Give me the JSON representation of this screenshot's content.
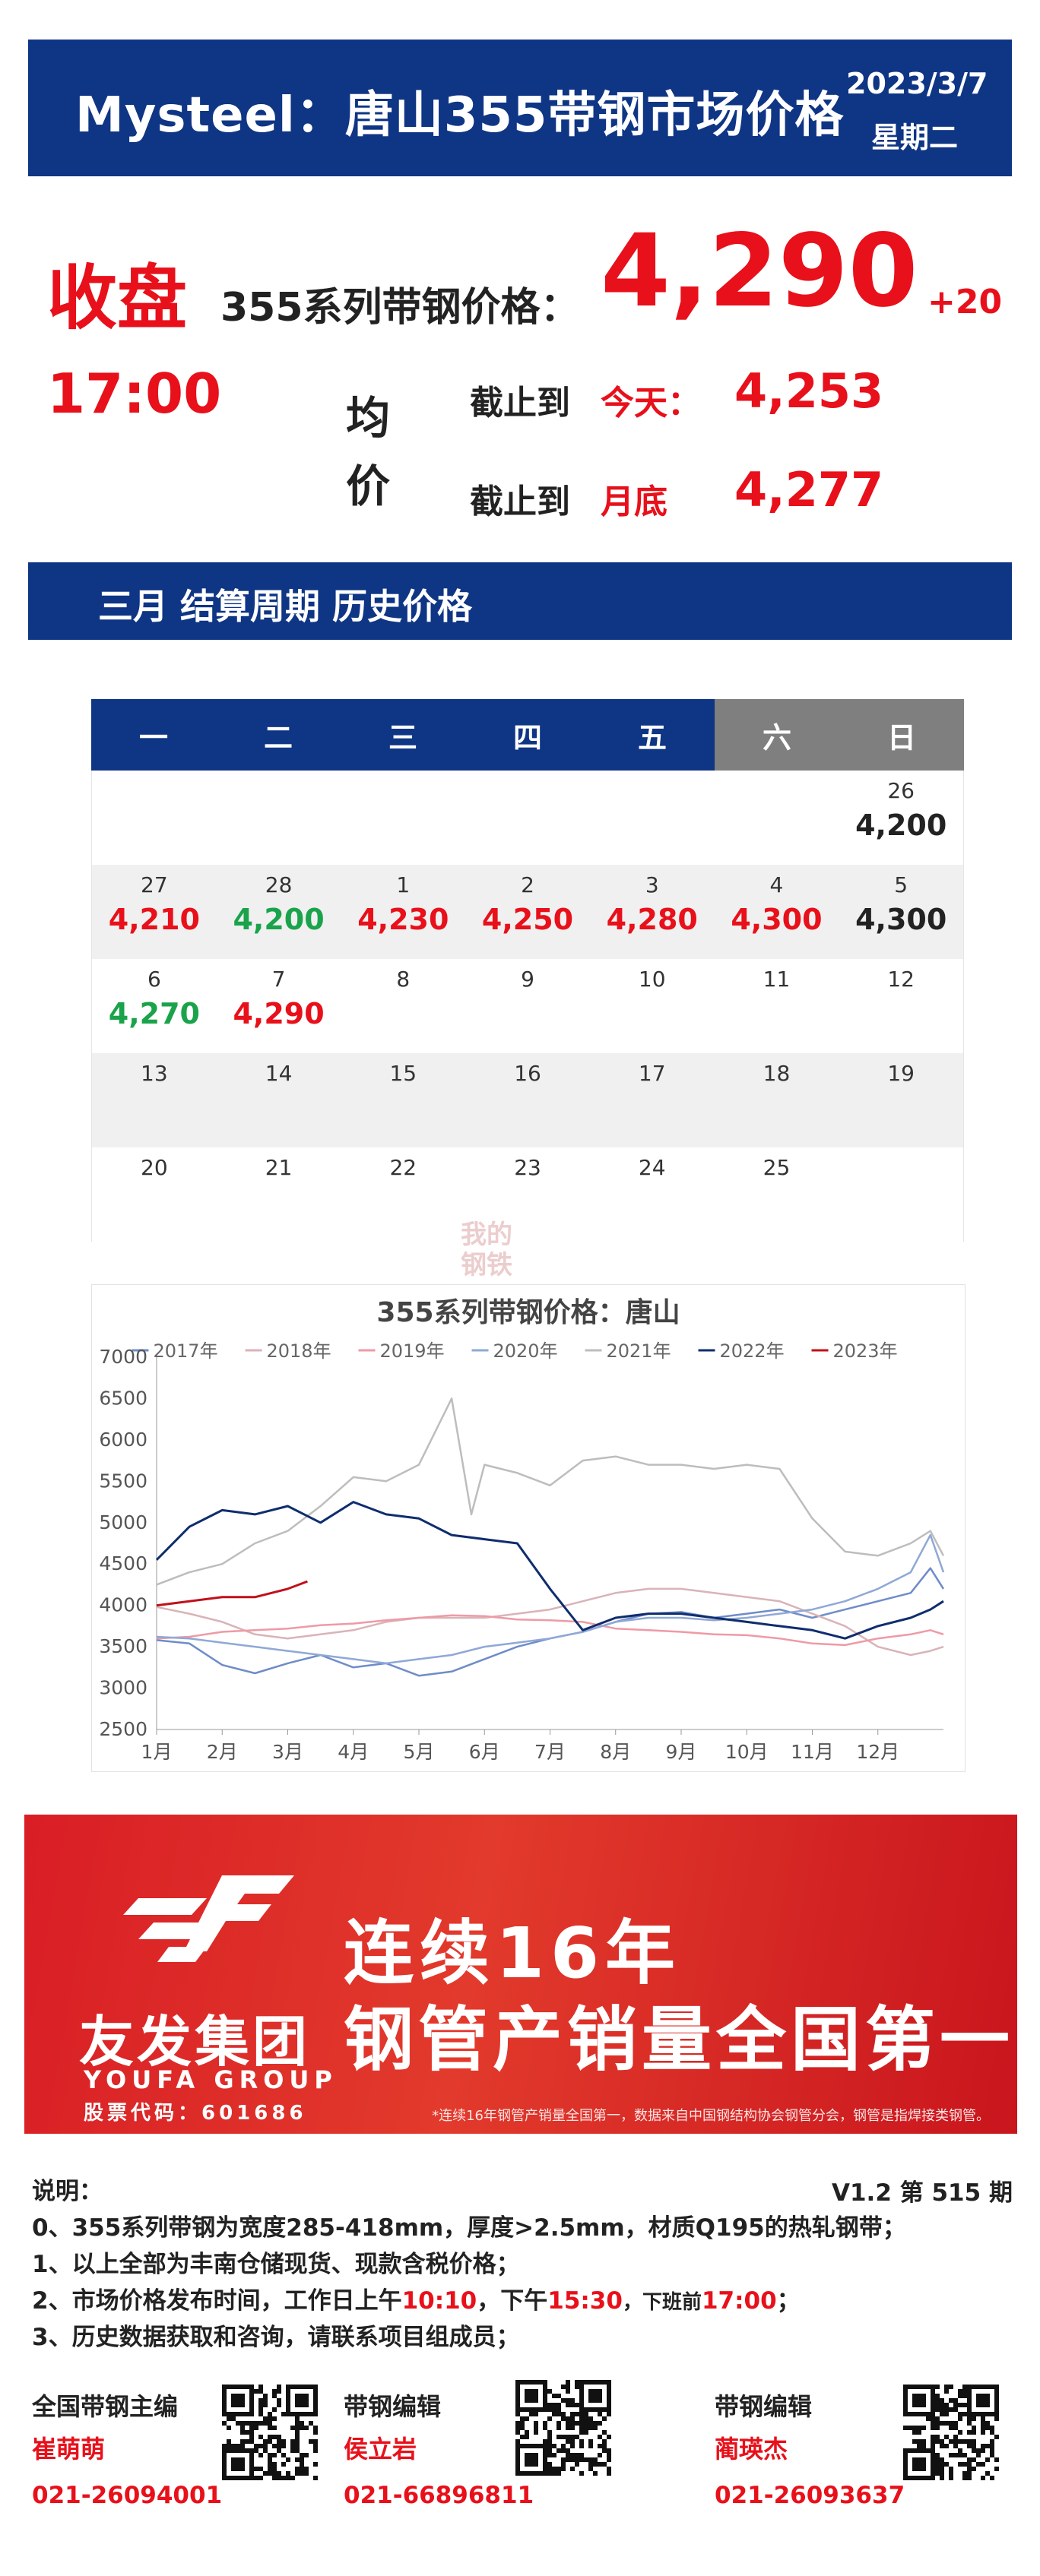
{
  "header": {
    "title": "Mysteel：唐山355带钢市场价格",
    "date": "2023/3/7",
    "weekday": "星期二"
  },
  "summary": {
    "close_label": "收盘",
    "close_time": "17:00",
    "price_label": "355系列带钢价格：",
    "price": "4,290",
    "change": "+20",
    "avg_label": "均价",
    "row1_label": "截止到",
    "row1_key": "今天：",
    "row1_value": "4,253",
    "row2_label": "截止到",
    "row2_key": "月底",
    "row2_value": "4,277"
  },
  "section": {
    "title": "三月 结算周期 历史价格"
  },
  "calendar": {
    "headers": [
      "一",
      "二",
      "三",
      "四",
      "五",
      "六",
      "日"
    ],
    "weeks": [
      [
        {
          "d": "",
          "p": "",
          "t": ""
        },
        {
          "d": "",
          "p": "",
          "t": ""
        },
        {
          "d": "",
          "p": "",
          "t": ""
        },
        {
          "d": "",
          "p": "",
          "t": ""
        },
        {
          "d": "",
          "p": "",
          "t": ""
        },
        {
          "d": "",
          "p": "",
          "t": ""
        },
        {
          "d": "26",
          "p": "4,200",
          "t": "flat"
        }
      ],
      [
        {
          "d": "27",
          "p": "4,210",
          "t": "up"
        },
        {
          "d": "28",
          "p": "4,200",
          "t": "down"
        },
        {
          "d": "1",
          "p": "4,230",
          "t": "up"
        },
        {
          "d": "2",
          "p": "4,250",
          "t": "up"
        },
        {
          "d": "3",
          "p": "4,280",
          "t": "up"
        },
        {
          "d": "4",
          "p": "4,300",
          "t": "up"
        },
        {
          "d": "5",
          "p": "4,300",
          "t": "flat"
        }
      ],
      [
        {
          "d": "6",
          "p": "4,270",
          "t": "down"
        },
        {
          "d": "7",
          "p": "4,290",
          "t": "up"
        },
        {
          "d": "8",
          "p": "",
          "t": ""
        },
        {
          "d": "9",
          "p": "",
          "t": ""
        },
        {
          "d": "10",
          "p": "",
          "t": ""
        },
        {
          "d": "11",
          "p": "",
          "t": ""
        },
        {
          "d": "12",
          "p": "",
          "t": ""
        }
      ],
      [
        {
          "d": "13",
          "p": "",
          "t": ""
        },
        {
          "d": "14",
          "p": "",
          "t": ""
        },
        {
          "d": "15",
          "p": "",
          "t": ""
        },
        {
          "d": "16",
          "p": "",
          "t": ""
        },
        {
          "d": "17",
          "p": "",
          "t": ""
        },
        {
          "d": "18",
          "p": "",
          "t": ""
        },
        {
          "d": "19",
          "p": "",
          "t": ""
        }
      ],
      [
        {
          "d": "20",
          "p": "",
          "t": ""
        },
        {
          "d": "21",
          "p": "",
          "t": ""
        },
        {
          "d": "22",
          "p": "",
          "t": ""
        },
        {
          "d": "23",
          "p": "",
          "t": ""
        },
        {
          "d": "24",
          "p": "",
          "t": ""
        },
        {
          "d": "25",
          "p": "",
          "t": ""
        },
        {
          "d": "",
          "p": "",
          "t": ""
        }
      ]
    ]
  },
  "watermark": {
    "text": "我的钢铁"
  },
  "chart_data": {
    "type": "line",
    "title": "355系列带钢价格：唐山",
    "xlabel": "",
    "ylabel": "",
    "x_ticks": [
      "1月",
      "2月",
      "3月",
      "4月",
      "5月",
      "6月",
      "7月",
      "8月",
      "9月",
      "10月",
      "11月",
      "12月"
    ],
    "ylim": [
      2500,
      7000
    ],
    "y_ticks": [
      2500,
      3000,
      3500,
      4000,
      4500,
      5000,
      5500,
      6000,
      6500,
      7000
    ],
    "grid": false,
    "legend": "top",
    "series": [
      {
        "name": "2017年",
        "color": "#6f8cc9",
        "x": [
          1,
          1.5,
          2,
          2.5,
          3,
          3.5,
          4,
          4.5,
          5,
          5.5,
          6,
          6.5,
          7,
          7.5,
          8,
          8.5,
          9,
          9.5,
          10,
          10.5,
          11,
          11.5,
          12,
          12.5,
          12.8,
          13
        ],
        "values": [
          3580,
          3540,
          3280,
          3180,
          3300,
          3400,
          3250,
          3300,
          3150,
          3200,
          3350,
          3500,
          3600,
          3680,
          3800,
          3900,
          3920,
          3850,
          3900,
          3950,
          3850,
          3950,
          4050,
          4150,
          4450,
          4200
        ]
      },
      {
        "name": "2018年",
        "color": "#d9b3b8",
        "x": [
          1,
          1.5,
          2,
          2.5,
          3,
          3.5,
          4,
          4.5,
          5,
          5.5,
          6,
          6.5,
          7,
          7.5,
          8,
          8.5,
          9,
          9.5,
          10,
          10.5,
          11,
          11.5,
          12,
          12.5,
          12.8,
          13
        ],
        "values": [
          3980,
          3900,
          3800,
          3650,
          3600,
          3650,
          3700,
          3800,
          3850,
          3850,
          3850,
          3900,
          3950,
          4050,
          4150,
          4200,
          4200,
          4150,
          4100,
          4050,
          3900,
          3750,
          3500,
          3400,
          3450,
          3500
        ]
      },
      {
        "name": "2019年",
        "color": "#ee9aa6",
        "x": [
          1,
          1.5,
          2,
          2.5,
          3,
          3.5,
          4,
          4.5,
          5,
          5.5,
          6,
          6.5,
          7,
          7.5,
          8,
          8.5,
          9,
          9.5,
          10,
          10.5,
          11,
          11.5,
          12,
          12.5,
          12.8,
          13
        ],
        "values": [
          3600,
          3620,
          3680,
          3700,
          3720,
          3760,
          3780,
          3820,
          3850,
          3880,
          3870,
          3830,
          3820,
          3800,
          3720,
          3700,
          3680,
          3650,
          3640,
          3600,
          3540,
          3520,
          3600,
          3650,
          3700,
          3650
        ]
      },
      {
        "name": "2020年",
        "color": "#8fa8d6",
        "x": [
          1,
          1.5,
          2,
          2.5,
          3,
          3.5,
          4,
          4.5,
          5,
          5.5,
          6,
          6.5,
          7,
          7.5,
          8,
          8.5,
          9,
          9.5,
          10,
          10.5,
          11,
          11.5,
          12,
          12.5,
          12.8,
          13
        ],
        "values": [
          3620,
          3600,
          3550,
          3500,
          3450,
          3400,
          3350,
          3300,
          3350,
          3400,
          3500,
          3550,
          3600,
          3680,
          3800,
          3850,
          3850,
          3820,
          3850,
          3900,
          3950,
          4050,
          4200,
          4400,
          4850,
          4400
        ]
      },
      {
        "name": "2021年",
        "color": "#bdbdbd",
        "x": [
          1,
          1.5,
          2,
          2.5,
          3,
          3.5,
          4,
          4.5,
          5,
          5.5,
          5.8,
          6,
          6.5,
          7,
          7.5,
          8,
          8.5,
          9,
          9.5,
          10,
          10.5,
          11,
          11.5,
          12,
          12.5,
          12.8,
          13
        ],
        "values": [
          4250,
          4400,
          4500,
          4750,
          4900,
          5200,
          5550,
          5500,
          5700,
          6500,
          5100,
          5700,
          5600,
          5450,
          5750,
          5800,
          5700,
          5700,
          5650,
          5700,
          5650,
          5050,
          4650,
          4600,
          4750,
          4900,
          4600
        ]
      },
      {
        "name": "2022年",
        "color": "#0f2d6e",
        "x": [
          1,
          1.5,
          2,
          2.5,
          3,
          3.5,
          4,
          4.5,
          5,
          5.5,
          6,
          6.5,
          7,
          7.5,
          8,
          8.5,
          9,
          9.5,
          10,
          10.5,
          11,
          11.5,
          12,
          12.5,
          12.8,
          13
        ],
        "values": [
          4550,
          4950,
          5150,
          5100,
          5200,
          5000,
          5250,
          5100,
          5050,
          4850,
          4800,
          4750,
          4200,
          3700,
          3850,
          3900,
          3900,
          3850,
          3800,
          3750,
          3700,
          3600,
          3750,
          3850,
          3950,
          4050
        ]
      },
      {
        "name": "2023年",
        "color": "#c0101a",
        "x": [
          1,
          1.5,
          2,
          2.5,
          3,
          3.3
        ],
        "values": [
          4000,
          4050,
          4100,
          4100,
          4200,
          4290
        ]
      }
    ]
  },
  "ad": {
    "brand": "友发集团",
    "brand_en": "YOUFA GROUP",
    "stock": "股票代码：601686",
    "slogan1": "连续16年",
    "slogan2": "钢管产销量全国第一",
    "note": "*连续16年钢管产销量全国第一，数据来自中国钢结构协会钢管分会，钢管是指焊接类钢管。"
  },
  "notes": {
    "heading": "说明：",
    "version": "V1.2   第 515 期",
    "line0": "0、355系列带钢为宽度285-418mm，厚度>2.5mm，材质Q195的热轧钢带；",
    "line1": "1、以上全部为丰南仓储现货、现款含税价格；",
    "line2_a": "2、市场价格发布时间，工作日上午",
    "line2_t1": "10:10",
    "line2_b": "，下午",
    "line2_t2": "15:30",
    "line2_c": "，下班前",
    "line2_t3": "17:00",
    "line2_d": "；",
    "line3": "3、历史数据获取和咨询，请联系项目组成员；"
  },
  "contacts": [
    {
      "role": "全国带钢主编",
      "name": "崔萌萌",
      "phone": "021-26094001"
    },
    {
      "role": "带钢编辑",
      "name": "侯立岩",
      "phone": "021-66896811"
    },
    {
      "role": "带钢编辑",
      "name": "蔺瑛杰",
      "phone": "021-26093637"
    }
  ]
}
